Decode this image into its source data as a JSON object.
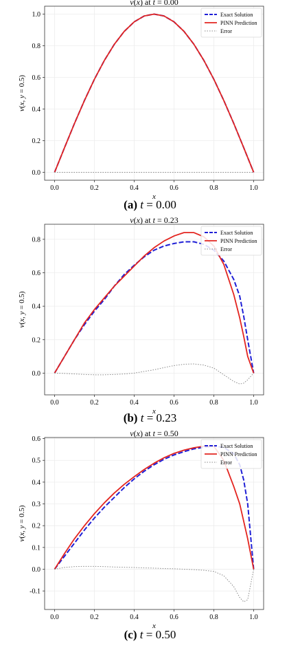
{
  "panels": [
    {
      "caption_label": "(a)",
      "caption_var": "t",
      "caption_value": "= 0.00",
      "chart_data": {
        "type": "line",
        "title": "v(x) at t = 0.00",
        "xlabel": "x",
        "ylabel": "v(x, y = 0.5)",
        "xlim": [
          -0.05,
          1.05
        ],
        "ylim": [
          -0.05,
          1.05
        ],
        "xticks": [
          0.0,
          0.2,
          0.4,
          0.6,
          0.8,
          1.0
        ],
        "xtick_labels": [
          "0.0",
          "0.2",
          "0.4",
          "0.6",
          "0.8",
          "1.0"
        ],
        "yticks": [
          0.0,
          0.2,
          0.4,
          0.6,
          0.8,
          1.0
        ],
        "ytick_labels": [
          "0.0",
          "0.2",
          "0.4",
          "0.6",
          "0.8",
          "1.0"
        ],
        "grid": true,
        "legend": "top-right",
        "x": [
          0.0,
          0.05,
          0.1,
          0.15,
          0.2,
          0.25,
          0.3,
          0.35,
          0.4,
          0.45,
          0.5,
          0.55,
          0.6,
          0.65,
          0.7,
          0.75,
          0.8,
          0.85,
          0.9,
          0.95,
          1.0
        ],
        "series": [
          {
            "name": "Exact Solution",
            "color": "#1f1fd6",
            "style": "dashed",
            "values": [
              0.0,
              0.156,
              0.309,
              0.454,
              0.588,
              0.707,
              0.809,
              0.891,
              0.951,
              0.988,
              1.0,
              0.988,
              0.951,
              0.891,
              0.809,
              0.707,
              0.588,
              0.454,
              0.309,
              0.156,
              0.0
            ]
          },
          {
            "name": "PINN Prediction",
            "color": "#e3241f",
            "style": "solid",
            "values": [
              0.0,
              0.156,
              0.309,
              0.454,
              0.588,
              0.707,
              0.809,
              0.891,
              0.951,
              0.988,
              1.0,
              0.988,
              0.951,
              0.891,
              0.809,
              0.707,
              0.588,
              0.454,
              0.309,
              0.156,
              0.0
            ]
          },
          {
            "name": "Error",
            "color": "#888888",
            "style": "dotted",
            "values": [
              0.0,
              0.0,
              0.0,
              0.0,
              0.0,
              0.0,
              0.0,
              0.0,
              0.0,
              0.0,
              0.0,
              0.0,
              0.0,
              0.0,
              0.0,
              0.0,
              0.0,
              0.0,
              0.0,
              0.0,
              0.0
            ]
          }
        ]
      }
    },
    {
      "caption_label": "(b)",
      "caption_var": "t",
      "caption_value": "= 0.23",
      "chart_data": {
        "type": "line",
        "title": "v(x) at t = 0.23",
        "xlabel": "x",
        "ylabel": "v(x, y = 0.5)",
        "xlim": [
          -0.05,
          1.05
        ],
        "ylim": [
          -0.13,
          0.89
        ],
        "xticks": [
          0.0,
          0.2,
          0.4,
          0.6,
          0.8,
          1.0
        ],
        "xtick_labels": [
          "0.0",
          "0.2",
          "0.4",
          "0.6",
          "0.8",
          "1.0"
        ],
        "yticks": [
          0.0,
          0.2,
          0.4,
          0.6,
          0.8
        ],
        "ytick_labels": [
          "0.0",
          "0.2",
          "0.4",
          "0.6",
          "0.8"
        ],
        "grid": true,
        "legend": "top-right",
        "x": [
          0.0,
          0.05,
          0.1,
          0.15,
          0.2,
          0.25,
          0.3,
          0.35,
          0.4,
          0.45,
          0.5,
          0.55,
          0.6,
          0.65,
          0.7,
          0.75,
          0.8,
          0.85,
          0.9,
          0.93,
          0.95,
          0.97,
          1.0
        ],
        "series": [
          {
            "name": "Exact Solution",
            "color": "#1f1fd6",
            "style": "dashed",
            "values": [
              0.0,
              0.1,
              0.2,
              0.29,
              0.37,
              0.44,
              0.52,
              0.59,
              0.645,
              0.695,
              0.735,
              0.76,
              0.775,
              0.785,
              0.785,
              0.77,
              0.735,
              0.67,
              0.56,
              0.46,
              0.34,
              0.2,
              0.0
            ]
          },
          {
            "name": "PINN Prediction",
            "color": "#e3241f",
            "style": "solid",
            "values": [
              0.0,
              0.1,
              0.2,
              0.3,
              0.38,
              0.45,
              0.52,
              0.58,
              0.64,
              0.7,
              0.75,
              0.79,
              0.82,
              0.84,
              0.84,
              0.815,
              0.76,
              0.65,
              0.47,
              0.33,
              0.22,
              0.1,
              0.0
            ]
          },
          {
            "name": "Error",
            "color": "#888888",
            "style": "dotted",
            "values": [
              0.0,
              -0.002,
              -0.005,
              -0.008,
              -0.01,
              -0.01,
              -0.008,
              -0.005,
              0.0,
              0.01,
              0.02,
              0.033,
              0.045,
              0.053,
              0.055,
              0.048,
              0.03,
              -0.01,
              -0.05,
              -0.065,
              -0.06,
              -0.04,
              0.0
            ]
          }
        ]
      }
    },
    {
      "caption_label": "(c)",
      "caption_var": "t",
      "caption_value": "= 0.50",
      "chart_data": {
        "type": "line",
        "title": "v(x) at t = 0.50",
        "xlabel": "x",
        "ylabel": "v(x, y = 0.5)",
        "xlim": [
          -0.05,
          1.05
        ],
        "ylim": [
          -0.185,
          0.605
        ],
        "xticks": [
          0.0,
          0.2,
          0.4,
          0.6,
          0.8,
          1.0
        ],
        "xtick_labels": [
          "0.0",
          "0.2",
          "0.4",
          "0.6",
          "0.8",
          "1.0"
        ],
        "yticks": [
          -0.1,
          0.0,
          0.1,
          0.2,
          0.3,
          0.4,
          0.5,
          0.6
        ],
        "ytick_labels": [
          "-0.1",
          "0.0",
          "0.1",
          "0.2",
          "0.3",
          "0.4",
          "0.5",
          "0.6"
        ],
        "grid": true,
        "legend": "top-right",
        "x": [
          0.0,
          0.05,
          0.1,
          0.15,
          0.2,
          0.25,
          0.3,
          0.35,
          0.4,
          0.45,
          0.5,
          0.55,
          0.6,
          0.65,
          0.7,
          0.75,
          0.8,
          0.85,
          0.9,
          0.93,
          0.95,
          0.97,
          1.0
        ],
        "series": [
          {
            "name": "Exact Solution",
            "color": "#1f1fd6",
            "style": "dashed",
            "values": [
              0.0,
              0.06,
              0.12,
              0.18,
              0.235,
              0.285,
              0.33,
              0.375,
              0.415,
              0.45,
              0.48,
              0.505,
              0.525,
              0.54,
              0.553,
              0.56,
              0.565,
              0.56,
              0.53,
              0.48,
              0.41,
              0.3,
              0.0
            ]
          },
          {
            "name": "PINN Prediction",
            "color": "#e3241f",
            "style": "solid",
            "values": [
              0.0,
              0.072,
              0.14,
              0.2,
              0.255,
              0.305,
              0.35,
              0.39,
              0.425,
              0.458,
              0.487,
              0.512,
              0.532,
              0.547,
              0.558,
              0.565,
              0.565,
              0.5,
              0.38,
              0.3,
              0.22,
              0.14,
              0.0
            ]
          },
          {
            "name": "Error",
            "color": "#888888",
            "style": "dotted",
            "values": [
              0.0,
              0.008,
              0.012,
              0.013,
              0.013,
              0.012,
              0.01,
              0.009,
              0.008,
              0.006,
              0.005,
              0.003,
              0.002,
              0.0,
              -0.002,
              -0.005,
              -0.01,
              -0.03,
              -0.08,
              -0.13,
              -0.15,
              -0.14,
              0.0
            ]
          }
        ]
      }
    }
  ]
}
